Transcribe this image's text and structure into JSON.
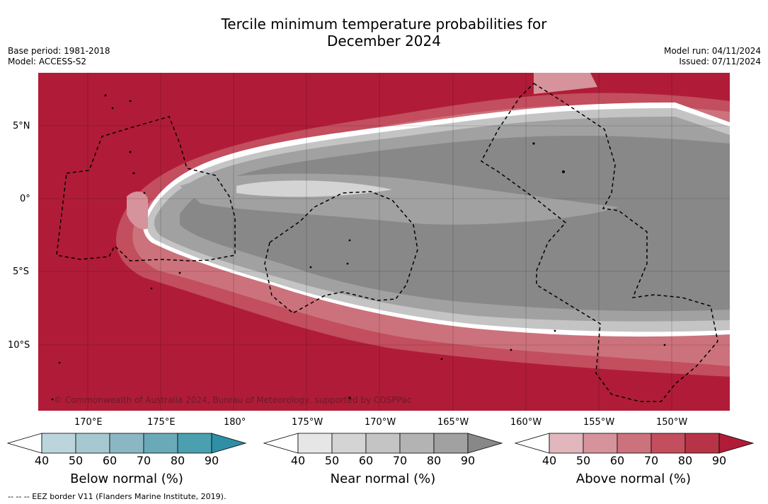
{
  "title": {
    "line1": "Tercile minimum temperature probabilities for",
    "line2": "December 2024"
  },
  "meta": {
    "base_period": "Base period: 1981-2018",
    "model": "Model: ACCESS-S2",
    "model_run": "Model run: 04/11/2024",
    "issued": "Issued: 07/11/2024"
  },
  "lat_labels": [
    "5°N",
    "0°",
    "5°S",
    "10°S"
  ],
  "lon_labels": [
    "170°E",
    "175°E",
    "180°",
    "175°W",
    "170°W",
    "165°W",
    "160°W",
    "155°W",
    "150°W"
  ],
  "copyright": "© Commonwealth of Australia 2024, Bureau of Meteorology, supported by COSPPac",
  "colorbars": [
    {
      "label": "Below normal (%)",
      "ticks": [
        "40",
        "50",
        "60",
        "70",
        "80",
        "90"
      ],
      "colors": [
        "#ffffff",
        "#bcd5dc",
        "#a6c8d0",
        "#8ab7c3",
        "#6aa9b8",
        "#4ba0b0",
        "#2f8fa5"
      ]
    },
    {
      "label": "Near normal (%)",
      "ticks": [
        "40",
        "50",
        "60",
        "70",
        "80",
        "90"
      ],
      "colors": [
        "#ffffff",
        "#e6e6e6",
        "#d4d4d4",
        "#c4c4c4",
        "#b3b3b3",
        "#a1a1a1",
        "#888888"
      ]
    },
    {
      "label": "Above normal (%)",
      "ticks": [
        "40",
        "50",
        "60",
        "70",
        "80",
        "90"
      ],
      "colors": [
        "#ffffff",
        "#e1b6bc",
        "#d6939b",
        "#cc727c",
        "#c24e5e",
        "#b73448",
        "#b01c37"
      ]
    }
  ],
  "footnote": "--  --  -- EEZ border V11 (Flanders Marine Institute, 2019).",
  "colors": {
    "above_high": "#b01c37",
    "above_mid": "#c24e5e",
    "above_low": "#d6939b",
    "near_high": "#888888",
    "near_mid": "#a1a1a1",
    "near_low": "#c4c4c4"
  }
}
